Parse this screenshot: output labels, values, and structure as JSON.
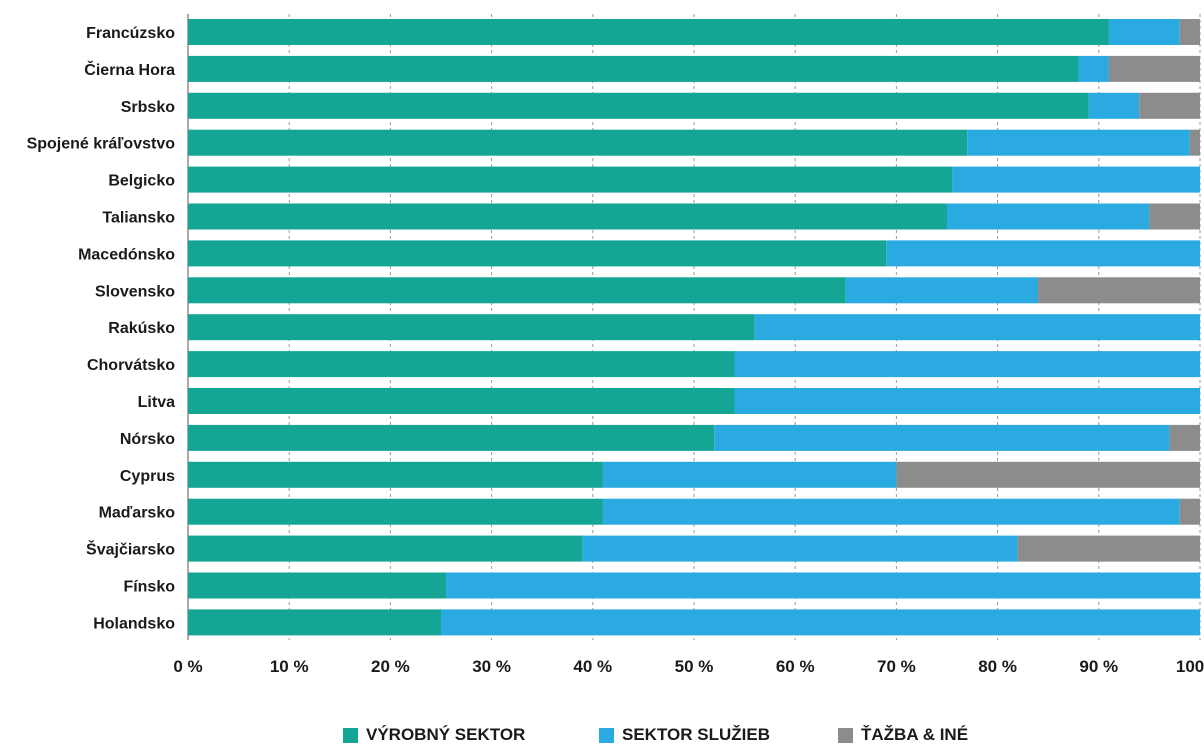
{
  "chart_data": {
    "type": "bar",
    "orientation": "horizontal",
    "stacked": true,
    "categories": [
      "Francúzsko",
      "Čierna Hora",
      "Srbsko",
      "Spojené kráľovstvo",
      "Belgicko",
      "Taliansko",
      "Macedónsko",
      "Slovensko",
      "Rakúsko",
      "Chorvátsko",
      "Litva",
      "Nórsko",
      "Cyprus",
      "Maďarsko",
      "Švajčiarsko",
      "Fínsko",
      "Holandsko"
    ],
    "series": [
      {
        "name": "VÝROBNÝ SEKTOR",
        "color": "#14a595",
        "values": [
          91,
          88,
          89,
          77,
          75.5,
          75,
          69,
          65,
          56,
          54,
          54,
          52,
          41,
          41,
          39,
          25.5,
          25
        ]
      },
      {
        "name": "SEKTOR SLUŽIEB",
        "color": "#2ba9e1",
        "values": [
          7,
          3,
          5,
          22,
          24.5,
          20,
          31,
          19,
          44,
          46,
          46,
          45,
          29,
          57,
          43,
          74.5,
          75
        ]
      },
      {
        "name": "ŤAŽBA & INÉ",
        "color": "#8c8c8c",
        "values": [
          2,
          9,
          6,
          1,
          0,
          5,
          0,
          16,
          0,
          0,
          0,
          3,
          30,
          2,
          18,
          0,
          0
        ]
      }
    ],
    "x_ticks": [
      "0 %",
      "10 %",
      "20 %",
      "30 %",
      "40 %",
      "50 %",
      "60 %",
      "70 %",
      "80 %",
      "90 %",
      "100 %"
    ],
    "xlim": [
      0,
      100
    ],
    "grid": "vertical dashed",
    "legend_position": "bottom"
  }
}
